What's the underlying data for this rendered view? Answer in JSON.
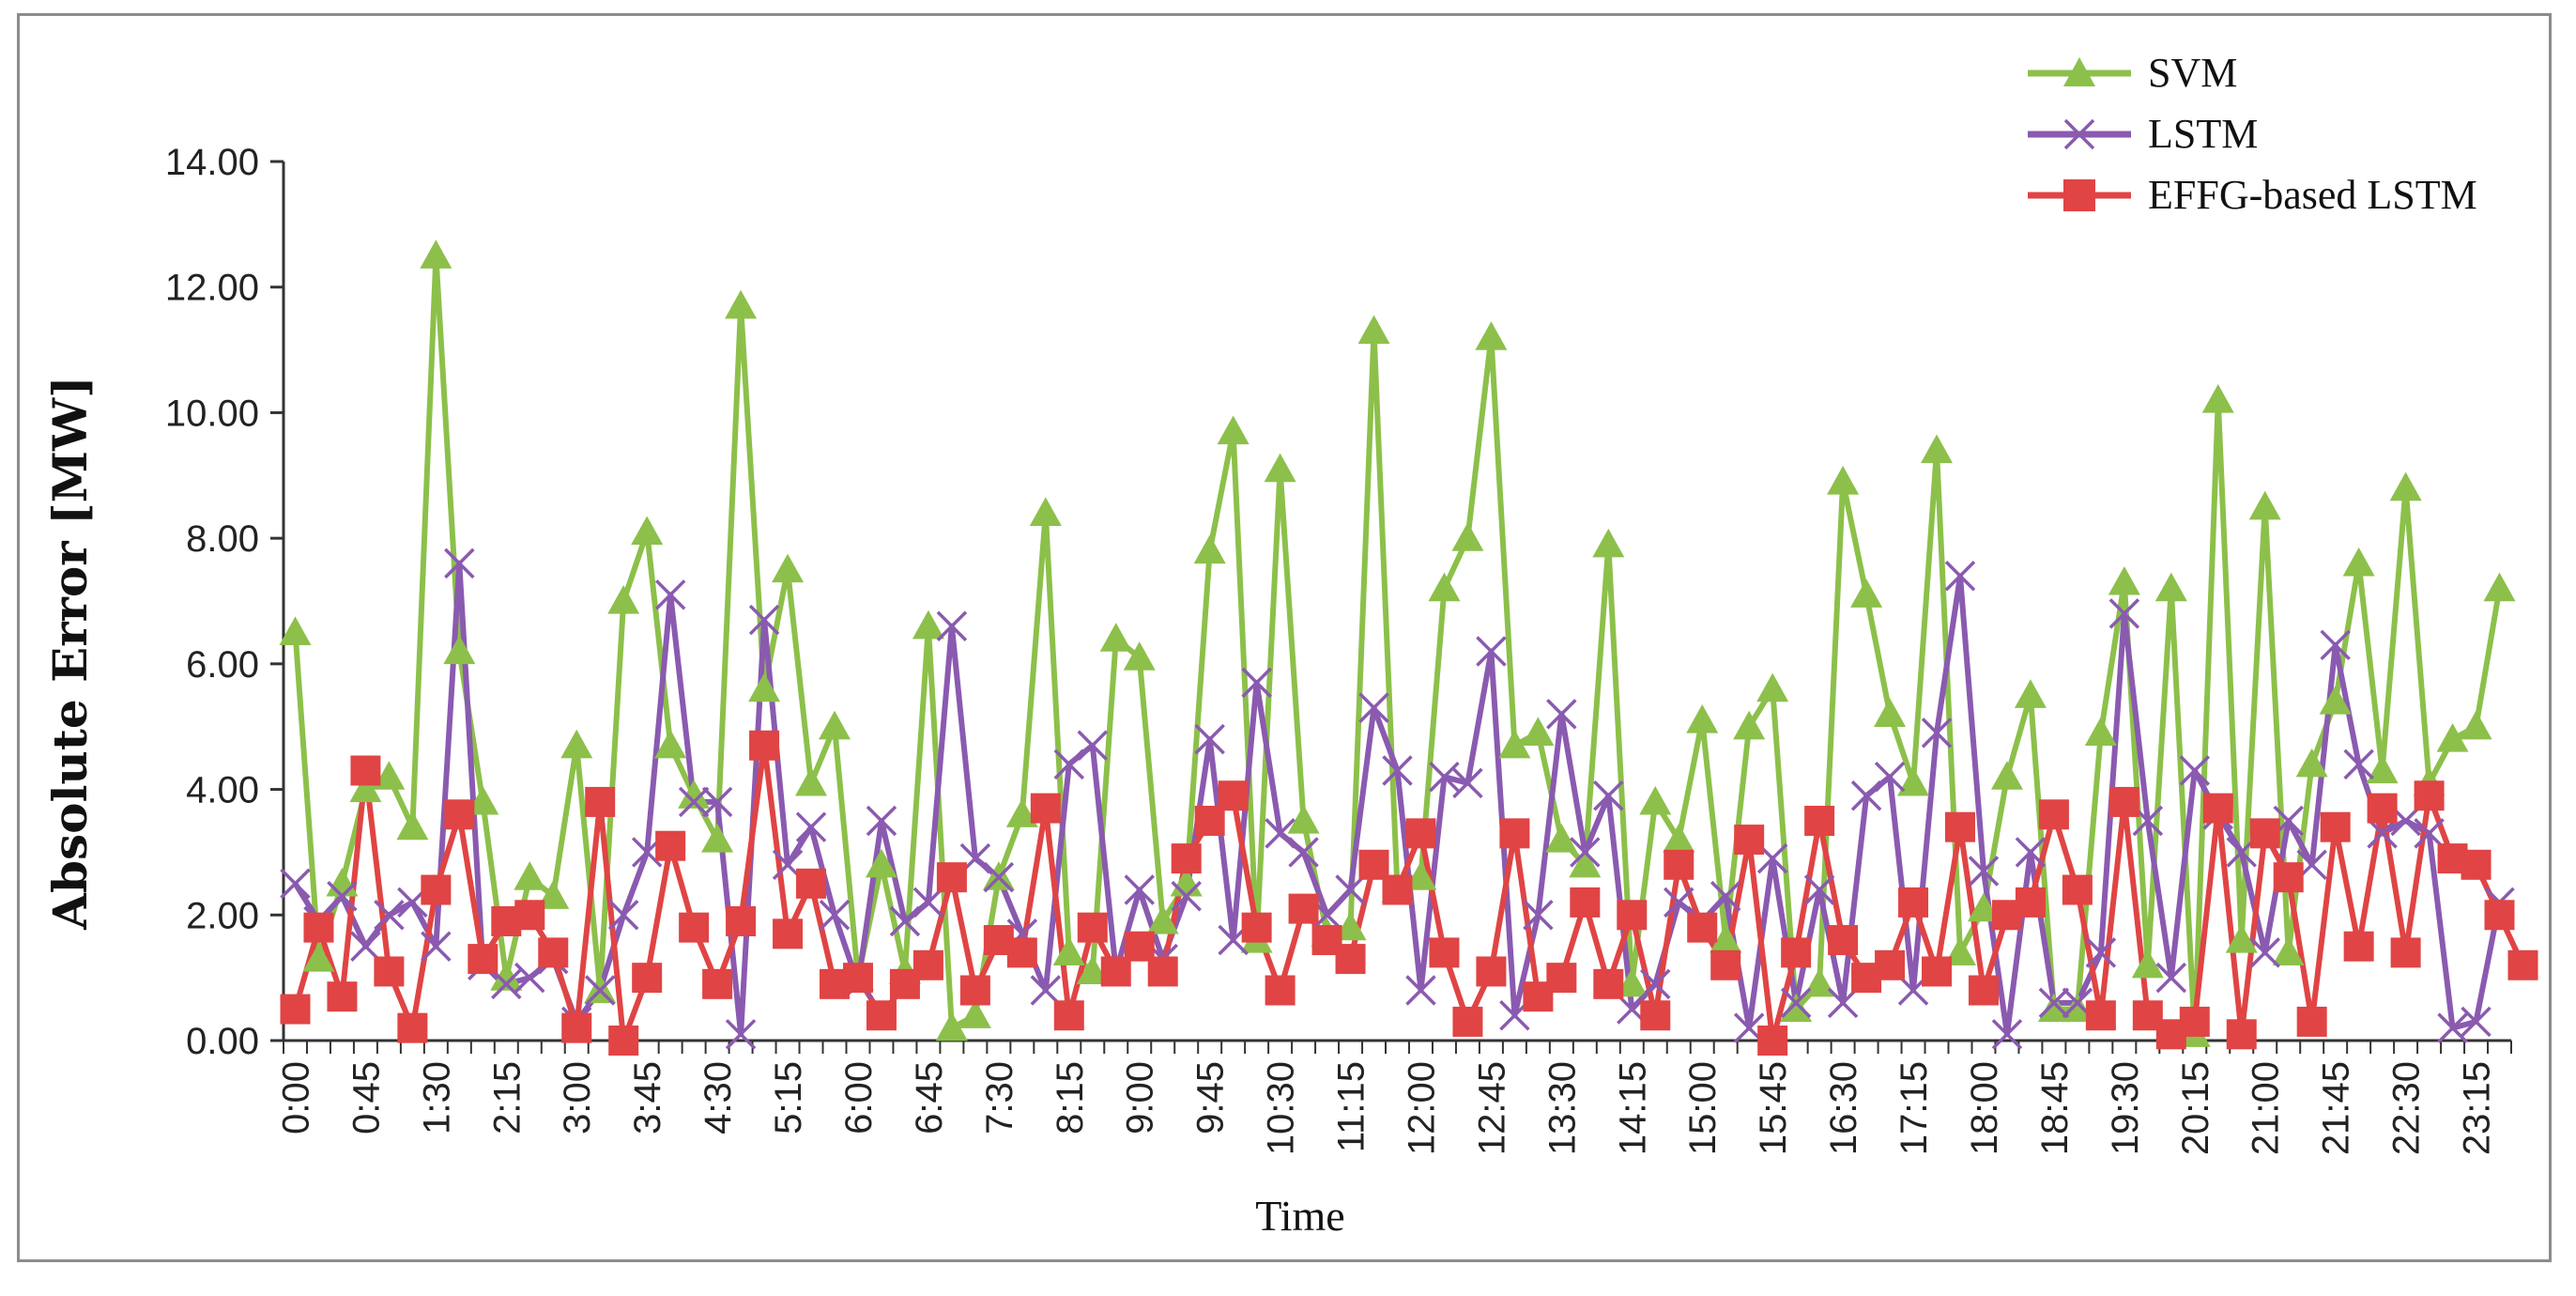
{
  "colors": {
    "svm": "#8cc04a",
    "lstm": "#8a5ab0",
    "effg": "#e04444",
    "axis": "#333333",
    "frame": "#8c8c8c"
  },
  "chart_data": {
    "type": "line",
    "title": "",
    "xlabel": "Time",
    "ylabel": "Absolute Error [MW]",
    "ylim": [
      0,
      14
    ],
    "y_ticks": [
      "0.00",
      "2.00",
      "4.00",
      "6.00",
      "8.00",
      "10.00",
      "12.00",
      "14.00"
    ],
    "x_tick_labels": [
      "0:00",
      "0:45",
      "1:30",
      "2:15",
      "3:00",
      "3:45",
      "4:30",
      "5:15",
      "6:00",
      "6:45",
      "7:30",
      "8:15",
      "9:00",
      "9:45",
      "10:30",
      "11:15",
      "12:00",
      "12:45",
      "13:30",
      "14:15",
      "15:00",
      "15:45",
      "16:30",
      "17:15",
      "18:00",
      "18:45",
      "19:30",
      "20:15",
      "21:00",
      "21:45",
      "22:30",
      "23:15"
    ],
    "x_interval_minutes": 15,
    "legend_position": "top-right",
    "series": [
      {
        "name": "SVM",
        "marker": "triangle",
        "values": [
          6.5,
          1.3,
          2.5,
          4.0,
          4.2,
          3.4,
          12.5,
          6.2,
          3.8,
          1.0,
          2.6,
          2.3,
          4.7,
          0.8,
          7.0,
          8.1,
          4.7,
          3.9,
          3.2,
          11.7,
          5.6,
          7.5,
          4.1,
          5.0,
          1.0,
          2.8,
          1.1,
          6.6,
          0.2,
          0.4,
          2.6,
          3.6,
          8.4,
          1.4,
          1.1,
          6.4,
          6.1,
          1.9,
          2.5,
          7.8,
          9.7,
          1.6,
          9.1,
          3.5,
          1.7,
          1.8,
          11.3,
          2.4,
          2.6,
          7.2,
          8.0,
          11.2,
          4.7,
          4.9,
          3.2,
          2.8,
          7.9,
          0.9,
          3.8,
          3.2,
          5.1,
          1.6,
          5.0,
          5.6,
          0.5,
          0.9,
          8.9,
          7.1,
          5.2,
          4.1,
          9.4,
          1.4,
          2.1,
          4.2,
          5.5,
          0.5,
          0.5,
          4.9,
          7.3,
          1.2,
          7.2,
          0.1,
          10.2,
          1.6,
          8.5,
          1.4,
          4.4,
          5.4,
          7.6,
          4.3,
          8.8,
          4.1,
          4.8,
          5.0,
          7.2
        ]
      },
      {
        "name": "LSTM",
        "marker": "x",
        "values": [
          2.5,
          1.9,
          2.3,
          1.5,
          2.0,
          2.2,
          1.5,
          7.6,
          1.2,
          0.9,
          1.0,
          1.3,
          0.3,
          0.8,
          2.0,
          3.0,
          7.1,
          3.8,
          3.8,
          0.1,
          6.7,
          2.8,
          3.4,
          2.0,
          0.9,
          3.5,
          1.9,
          2.2,
          6.6,
          2.9,
          2.6,
          1.7,
          0.8,
          4.4,
          4.7,
          1.1,
          2.4,
          1.3,
          2.3,
          4.8,
          1.6,
          5.7,
          3.3,
          3.0,
          2.0,
          2.4,
          5.3,
          4.3,
          0.8,
          4.2,
          4.1,
          6.2,
          0.4,
          2.0,
          5.2,
          3.0,
          3.9,
          0.5,
          0.9,
          2.2,
          1.9,
          2.3,
          0.2,
          2.9,
          0.6,
          2.4,
          0.6,
          3.9,
          4.2,
          0.8,
          4.9,
          7.4,
          2.7,
          0.1,
          3.0,
          0.6,
          0.6,
          1.4,
          6.8,
          3.5,
          1.0,
          4.3,
          3.6,
          3.0,
          1.4,
          3.5,
          2.8,
          6.3,
          4.4,
          3.3,
          3.5,
          3.3,
          0.2,
          0.3,
          2.2
        ]
      },
      {
        "name": "EFFG-based LSTM",
        "marker": "square",
        "values": [
          0.5,
          1.8,
          0.7,
          4.3,
          1.1,
          0.2,
          2.4,
          3.6,
          1.3,
          1.9,
          2.0,
          1.4,
          0.2,
          3.8,
          0.0,
          1.0,
          3.1,
          1.8,
          0.9,
          1.9,
          4.7,
          1.7,
          2.5,
          0.9,
          1.0,
          0.4,
          0.9,
          1.2,
          2.6,
          0.8,
          1.6,
          1.4,
          3.7,
          0.4,
          1.8,
          1.1,
          1.5,
          1.1,
          2.9,
          3.5,
          3.9,
          1.8,
          0.8,
          2.1,
          1.6,
          1.3,
          2.8,
          2.4,
          3.3,
          1.4,
          0.3,
          1.1,
          3.3,
          0.7,
          1.0,
          2.2,
          0.9,
          2.0,
          0.4,
          2.8,
          1.8,
          1.2,
          3.2,
          0.0,
          1.4,
          3.5,
          1.6,
          1.0,
          1.2,
          2.2,
          1.1,
          3.4,
          0.8,
          2.0,
          2.2,
          3.6,
          2.4,
          0.4,
          3.8,
          0.4,
          0.1,
          0.3,
          3.7,
          0.1,
          3.3,
          2.6,
          0.3,
          3.4,
          1.5,
          3.7,
          1.4,
          3.9,
          2.9,
          2.8,
          2.0,
          1.2
        ]
      }
    ]
  }
}
